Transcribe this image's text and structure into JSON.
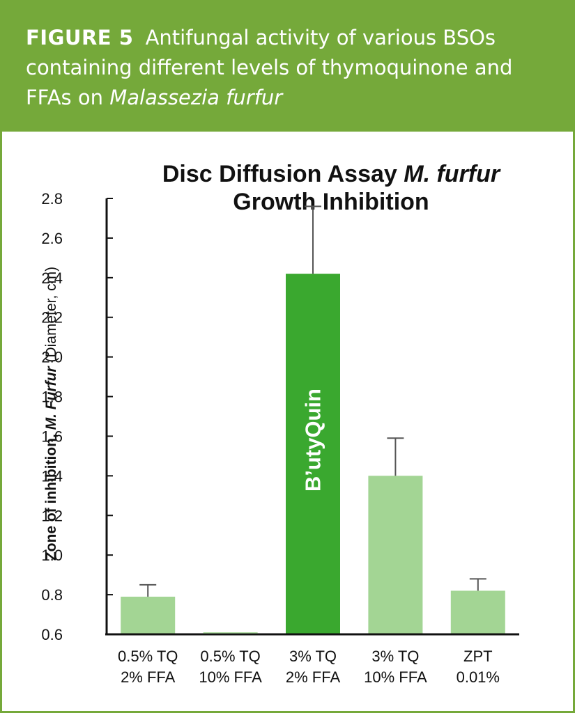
{
  "figure": {
    "label": "FIGURE 5",
    "caption": "Antifungal activity of various BSOs containing different levels of thymoquinone and FFAs on",
    "species": "Malassezia furfur"
  },
  "colors": {
    "header_bg": "#75a93a",
    "bar_light": "#a3d594",
    "bar_highlight": "#3aa82f",
    "axis": "#111111",
    "error_bar": "#555555"
  },
  "chart_data": {
    "type": "bar",
    "title_line1_plain": "Disc Diffusion Assay ",
    "title_line1_italic": "M. furfur",
    "title_line2": "Growth Inhibition",
    "ylabel_bold": "Zone of inhibition, ",
    "ylabel_bold_italic": "M. Furfur",
    "ylabel_unit": "(Diameter, cm)",
    "xlabel": "",
    "ylim": [
      0.6,
      2.8
    ],
    "yticks": [
      "0.6",
      "0.8",
      "1.0",
      "1.2",
      "1.4",
      "1.6",
      "1.8",
      "2.0",
      "2.2",
      "2.4",
      "2.6",
      "2.8"
    ],
    "categories": [
      [
        "0.5% TQ",
        "2% FFA"
      ],
      [
        "0.5% TQ",
        "10% FFA"
      ],
      [
        "3% TQ",
        "2% FFA"
      ],
      [
        "3% TQ",
        "10% FFA"
      ],
      [
        "ZPT",
        "0.01%"
      ]
    ],
    "values": [
      0.79,
      0.61,
      2.42,
      1.4,
      0.82
    ],
    "error_upper": [
      0.85,
      null,
      2.76,
      1.59,
      0.88
    ],
    "highlight_index": 2,
    "bar_annotation": "B’utyQuin",
    "grid": false,
    "legend": "none"
  }
}
